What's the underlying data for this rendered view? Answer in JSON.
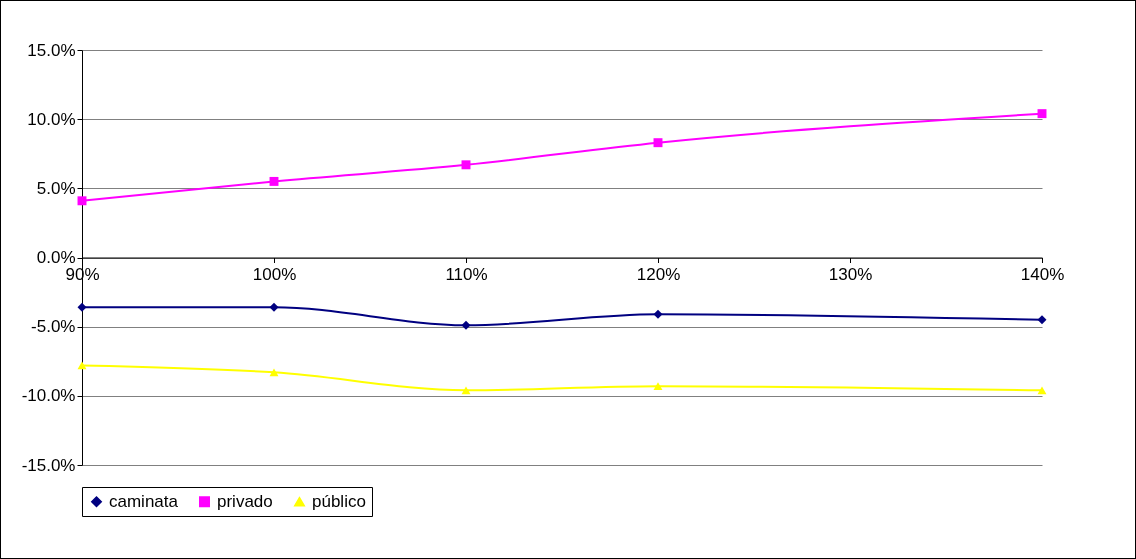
{
  "chart_data": {
    "type": "line",
    "x": [
      90,
      100,
      110,
      120,
      140
    ],
    "series": [
      {
        "name": "caminata",
        "color": "#000080",
        "marker": "diamond",
        "values": [
          -3.6,
          -3.6,
          -4.9,
          -4.1,
          -4.5
        ]
      },
      {
        "name": "privado",
        "color": "#ff00ff",
        "marker": "square",
        "values": [
          4.1,
          5.5,
          6.7,
          8.3,
          10.4
        ]
      },
      {
        "name": "público",
        "color": "#ffff00",
        "marker": "triangle",
        "values": [
          -7.8,
          -8.3,
          -9.6,
          -9.3,
          -9.6
        ]
      }
    ],
    "xlim": [
      90,
      140
    ],
    "xticks": [
      {
        "value": 90,
        "label": "90%"
      },
      {
        "value": 100,
        "label": "100%"
      },
      {
        "value": 110,
        "label": "110%"
      },
      {
        "value": 120,
        "label": "120%"
      },
      {
        "value": 130,
        "label": "130%"
      },
      {
        "value": 140,
        "label": "140%"
      }
    ],
    "ylim": [
      -15,
      15
    ],
    "yticks": [
      {
        "value": -15,
        "label": "-15.0%"
      },
      {
        "value": -10,
        "label": "-10.0%"
      },
      {
        "value": -5,
        "label": "-5.0%"
      },
      {
        "value": 0,
        "label": "0.0%"
      },
      {
        "value": 5,
        "label": "5.0%"
      },
      {
        "value": 10,
        "label": "10.0%"
      },
      {
        "value": 15,
        "label": "15.0%"
      }
    ],
    "grid": "y",
    "legend": "bottom",
    "line_style": "solid"
  }
}
